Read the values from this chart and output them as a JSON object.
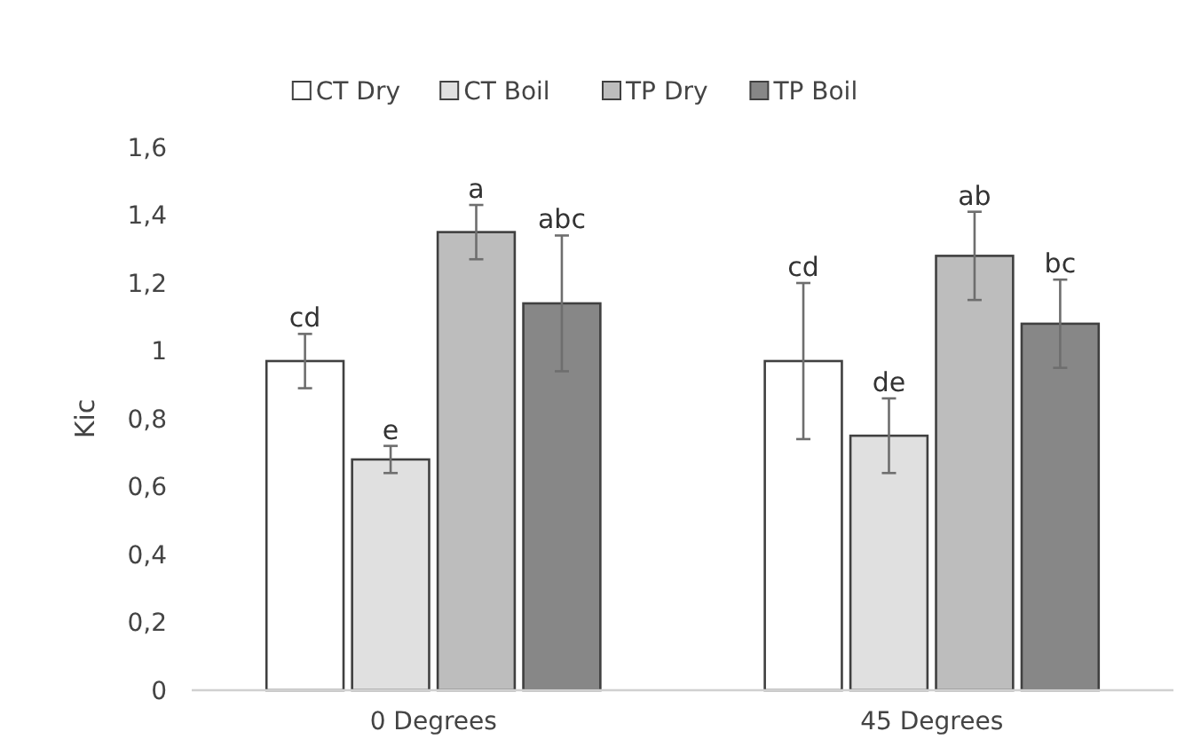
{
  "chart_data": {
    "type": "bar",
    "ylabel": "Kic",
    "categories": [
      "0 Degrees",
      "45 Degrees"
    ],
    "series": [
      {
        "name": "CT Dry",
        "color": "#ffffff",
        "values": [
          0.97,
          0.97
        ],
        "errors": [
          0.08,
          0.23
        ],
        "value_labels": [
          "cd",
          "cd"
        ]
      },
      {
        "name": "CT Boil",
        "color": "#e0e0e0",
        "values": [
          0.68,
          0.75
        ],
        "errors": [
          0.04,
          0.11
        ],
        "value_labels": [
          "e",
          "de"
        ]
      },
      {
        "name": "TP Dry",
        "color": "#bdbdbd",
        "values": [
          1.35,
          1.28
        ],
        "errors": [
          0.08,
          0.13
        ],
        "value_labels": [
          "a",
          "ab"
        ]
      },
      {
        "name": "TP Boil",
        "color": "#878787",
        "values": [
          1.14,
          1.08
        ],
        "errors": [
          0.2,
          0.13
        ],
        "value_labels": [
          "abc",
          "bc"
        ]
      }
    ],
    "ylim": [
      0,
      1.6
    ],
    "yticks": [
      0,
      {
        "value": 0.2,
        "label": "0,2"
      },
      {
        "value": 0.4,
        "label": "0,4"
      },
      {
        "value": 0.6,
        "label": "0,6"
      },
      {
        "value": 0.8,
        "label": "0,8"
      },
      1,
      {
        "value": 1.2,
        "label": "1,2"
      },
      {
        "value": 1.4,
        "label": "1,4"
      },
      {
        "value": 1.6,
        "label": "1,6"
      }
    ],
    "legend": "top"
  }
}
